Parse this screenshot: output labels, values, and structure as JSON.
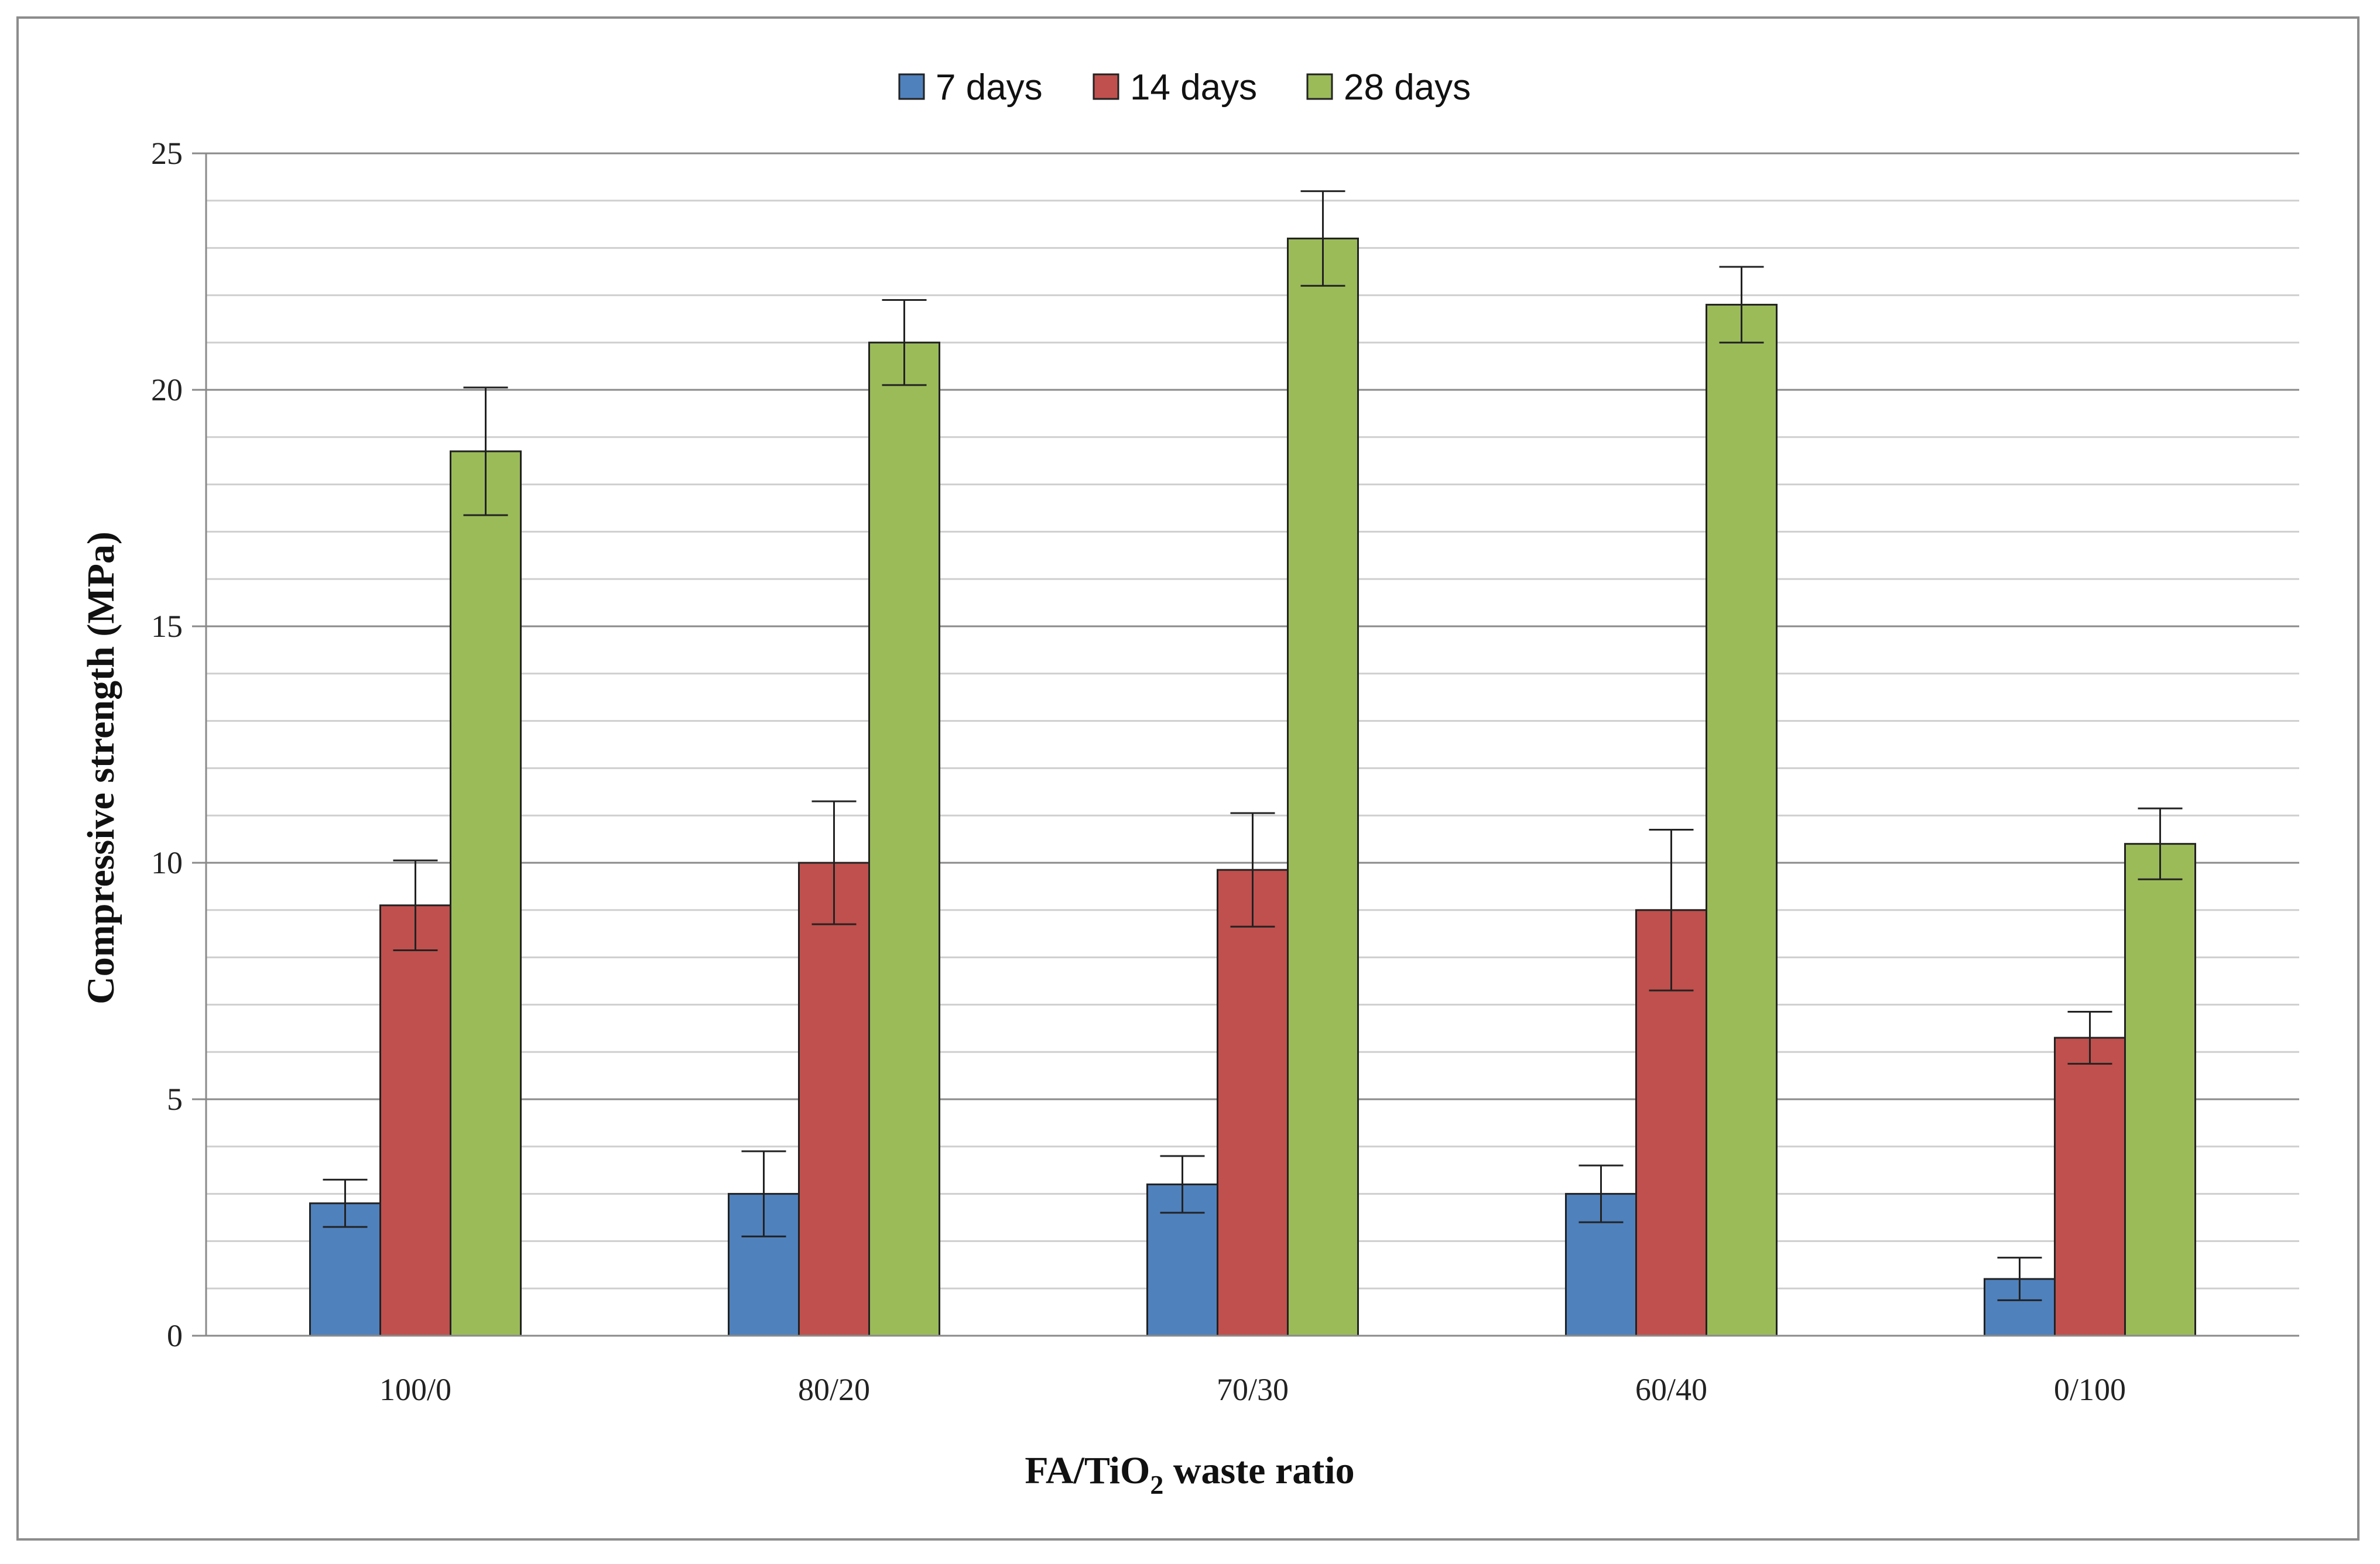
{
  "chart_data": {
    "type": "bar",
    "title": "",
    "xlabel": {
      "prefix": "FA/TiO",
      "subscript": "2",
      "suffix": " waste ratio"
    },
    "ylabel": "Compressive strength (MPa)",
    "ylim": [
      0,
      25
    ],
    "y_major_ticks": [
      0,
      5,
      10,
      15,
      20,
      25
    ],
    "y_minor_step": 1,
    "grid": true,
    "legend_position": "top-center",
    "categories": [
      "100/0",
      "80/20",
      "70/30",
      "60/40",
      "0/100"
    ],
    "series": [
      {
        "name": "7 days",
        "color": "#4f81bd",
        "values": [
          2.8,
          3.0,
          3.2,
          3.0,
          1.2
        ],
        "errors": [
          0.5,
          0.9,
          0.6,
          0.6,
          0.45
        ]
      },
      {
        "name": "14 days",
        "color": "#c0504d",
        "values": [
          9.1,
          10.0,
          9.85,
          9.0,
          6.3
        ],
        "errors": [
          0.95,
          1.3,
          1.2,
          1.7,
          0.55
        ]
      },
      {
        "name": "28 days",
        "color": "#9bbb59",
        "values": [
          18.7,
          21.0,
          23.2,
          21.8,
          10.4
        ],
        "errors": [
          1.35,
          0.9,
          1.0,
          0.8,
          0.75
        ]
      }
    ]
  }
}
